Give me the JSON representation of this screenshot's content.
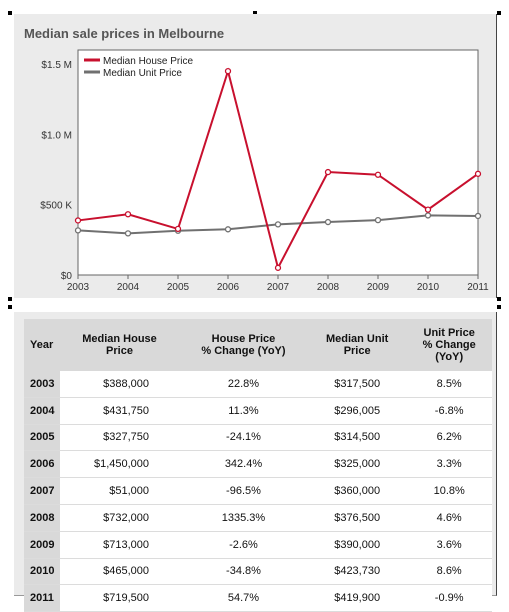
{
  "chart_title": "Median sale prices in Melbourne",
  "chart_data": {
    "type": "line",
    "title": "Median sale prices in Melbourne",
    "x": [
      "2003",
      "2004",
      "2005",
      "2006",
      "2007",
      "2008",
      "2009",
      "2010",
      "2011"
    ],
    "series": [
      {
        "name": "Median House Price",
        "color": "#c8102e",
        "values": [
          388000,
          431750,
          327750,
          1450000,
          51000,
          732000,
          713000,
          465000,
          719500
        ]
      },
      {
        "name": "Median Unit Price",
        "color": "#707070",
        "values": [
          317500,
          296005,
          314500,
          325000,
          360000,
          376500,
          390000,
          423730,
          419900
        ]
      }
    ],
    "ylim": [
      0,
      1600000
    ],
    "yticks": [
      {
        "value": 0,
        "label": "$0"
      },
      {
        "value": 500000,
        "label": "$500 K"
      },
      {
        "value": 1000000,
        "label": "$1.0 M"
      },
      {
        "value": 1500000,
        "label": "$1.5 M"
      }
    ],
    "grid": false,
    "legend_position": "top-left"
  },
  "table": {
    "headers": [
      "Year",
      "Median House\nPrice",
      "House Price\n% Change (YoY)",
      "Median Unit\nPrice",
      "Unit Price\n% Change\n(YoY)"
    ],
    "rows": [
      [
        "2003",
        "$388,000",
        "22.8%",
        "$317,500",
        "8.5%"
      ],
      [
        "2004",
        "$431,750",
        "11.3%",
        "$296,005",
        "-6.8%"
      ],
      [
        "2005",
        "$327,750",
        "-24.1%",
        "$314,500",
        "6.2%"
      ],
      [
        "2006",
        "$1,450,000",
        "342.4%",
        "$325,000",
        "3.3%"
      ],
      [
        "2007",
        "$51,000",
        "-96.5%",
        "$360,000",
        "10.8%"
      ],
      [
        "2008",
        "$732,000",
        "1335.3%",
        "$376,500",
        "4.6%"
      ],
      [
        "2009",
        "$713,000",
        "-2.6%",
        "$390,000",
        "3.6%"
      ],
      [
        "2010",
        "$465,000",
        "-34.8%",
        "$423,730",
        "8.6%"
      ],
      [
        "2011",
        "$719,500",
        "54.7%",
        "$419,900",
        "-0.9%"
      ]
    ]
  }
}
